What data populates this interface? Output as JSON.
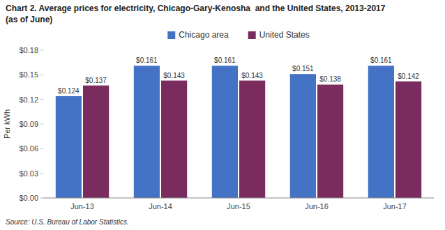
{
  "chart_data": {
    "type": "bar",
    "title": "Chart 2. Average prices for electricity, Chicago-Gary-Kenosha  and the United States, 2013-2017",
    "subtitle": "(as of June)",
    "y_label": "Per kWh",
    "source": "Source: U.S. Bureau of Labor Statistics.",
    "categories": [
      "Jun-13",
      "Jun-14",
      "Jun-15",
      "Jun-16",
      "Jun-17"
    ],
    "series": [
      {
        "name": "Chicago area",
        "color": "#4472C4",
        "values": [
          0.124,
          0.161,
          0.161,
          0.151,
          0.161
        ],
        "value_labels": [
          "$0.124",
          "$0.161",
          "$0.161",
          "$0.151",
          "$0.161"
        ]
      },
      {
        "name": "United States",
        "color": "#7B2C5E",
        "values": [
          0.137,
          0.143,
          0.143,
          0.138,
          0.142
        ],
        "value_labels": [
          "$0.137",
          "$0.143",
          "$0.143",
          "$0.138",
          "$0.142"
        ]
      }
    ],
    "ylim": [
      0,
      0.18
    ],
    "yticks": [
      {
        "value": 0.0,
        "label": "$0.00"
      },
      {
        "value": 0.03,
        "label": "$0.03"
      },
      {
        "value": 0.06,
        "label": "$0.06"
      },
      {
        "value": 0.09,
        "label": "$0.09"
      },
      {
        "value": 0.12,
        "label": "$0.12"
      },
      {
        "value": 0.15,
        "label": "$0.15"
      },
      {
        "value": 0.18,
        "label": "$0.18"
      }
    ],
    "data_labels": true,
    "legend": "top",
    "grid": false
  }
}
